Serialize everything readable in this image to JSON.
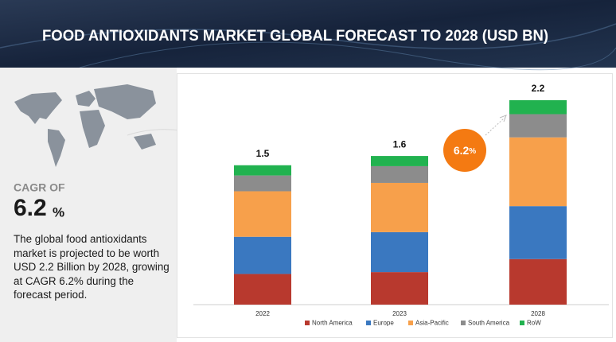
{
  "header": {
    "title": "FOOD ANTIOXIDANTS MARKET GLOBAL FORECAST TO 2028 (USD BN)"
  },
  "sidebar": {
    "cagr_label": "CAGR OF",
    "cagr_value": "6.2",
    "cagr_unit": "%",
    "description": "The global food antioxidants market is projected to be worth USD 2.2 Billion by 2028, growing at CAGR 6.2% during the forecast period."
  },
  "chart_data": {
    "type": "bar",
    "stacked": true,
    "categories": [
      "2022",
      "2023",
      "2028"
    ],
    "series": [
      {
        "name": "North America",
        "color": "#b8392e",
        "values": [
          0.33,
          0.35,
          0.49
        ]
      },
      {
        "name": "Europe",
        "color": "#3a78c0",
        "values": [
          0.4,
          0.43,
          0.57
        ]
      },
      {
        "name": "Asia-Pacific",
        "color": "#f7a04b",
        "values": [
          0.49,
          0.53,
          0.74
        ]
      },
      {
        "name": "South America",
        "color": "#8c8c8c",
        "values": [
          0.17,
          0.18,
          0.25
        ]
      },
      {
        "name": "RoW",
        "color": "#21b24f",
        "values": [
          0.11,
          0.11,
          0.15
        ]
      }
    ],
    "totals": [
      1.5,
      1.6,
      2.2
    ],
    "annotation": {
      "value": "6.2",
      "unit": "%",
      "color": "#f47a12"
    },
    "legend": "bottom"
  }
}
